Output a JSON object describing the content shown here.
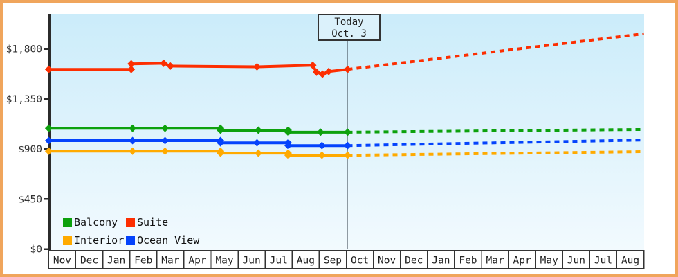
{
  "frame": {
    "border_color": "#f0a55c"
  },
  "today_box": {
    "line1": "Today",
    "line2": "Oct. 3"
  },
  "legend": {
    "items": [
      {
        "label": "Balcony",
        "color": "#0da10d"
      },
      {
        "label": "Suite",
        "color": "#fd2e01"
      },
      {
        "label": "Interior",
        "color": "#ffaa00"
      },
      {
        "label": "Ocean View",
        "color": "#0443fc"
      }
    ]
  },
  "chart_data": {
    "type": "line",
    "title": "",
    "x_axis": {
      "unit": "month",
      "tick_labels": [
        "Nov",
        "Dec",
        "Jan",
        "Feb",
        "Mar",
        "Apr",
        "May",
        "Jun",
        "Jul",
        "Aug",
        "Sep",
        "Oct",
        "Nov",
        "Dec",
        "Jan",
        "Feb",
        "Mar",
        "Apr",
        "May",
        "Jun",
        "Jul",
        "Aug"
      ]
    },
    "y_axis": {
      "tick_labels": [
        "$0",
        "$450",
        "$900",
        "$1,350",
        "$1,800"
      ],
      "tick_values": [
        0,
        450,
        900,
        1350,
        1800
      ],
      "range": [
        0,
        2110
      ]
    },
    "today": {
      "label": "Today",
      "date": "Oct. 3",
      "x_months_from_start": 11.05
    },
    "legend_position": "bottom-left-inside",
    "grid": false,
    "series": [
      {
        "name": "Interior",
        "color": "#ffaa00",
        "style": "solid-then-dashed-forecast",
        "actual": [
          [
            0,
            880
          ],
          [
            3.1,
            880
          ],
          [
            4.3,
            880
          ],
          [
            6.35,
            880
          ],
          [
            6.35,
            862
          ],
          [
            7.75,
            862
          ],
          [
            8.85,
            862
          ],
          [
            8.85,
            843
          ],
          [
            10.1,
            843
          ],
          [
            11.05,
            843
          ]
        ],
        "forecast": [
          [
            11.05,
            843
          ],
          [
            22,
            875
          ]
        ]
      },
      {
        "name": "Ocean View",
        "color": "#0443fc",
        "style": "solid-then-dashed-forecast",
        "actual": [
          [
            0,
            975
          ],
          [
            3.1,
            975
          ],
          [
            4.3,
            975
          ],
          [
            6.35,
            975
          ],
          [
            6.35,
            955
          ],
          [
            7.7,
            955
          ],
          [
            8.85,
            955
          ],
          [
            8.85,
            930
          ],
          [
            10.1,
            930
          ],
          [
            11.05,
            930
          ]
        ],
        "forecast": [
          [
            11.05,
            930
          ],
          [
            22,
            980
          ]
        ]
      },
      {
        "name": "Balcony",
        "color": "#0da10d",
        "style": "solid-then-dashed-forecast",
        "actual": [
          [
            0,
            1085
          ],
          [
            3.1,
            1085
          ],
          [
            4.3,
            1085
          ],
          [
            6.35,
            1085
          ],
          [
            6.35,
            1068
          ],
          [
            7.75,
            1068
          ],
          [
            8.85,
            1068
          ],
          [
            8.85,
            1050
          ],
          [
            10.05,
            1050
          ],
          [
            11.05,
            1050
          ]
        ],
        "forecast": [
          [
            11.05,
            1050
          ],
          [
            22,
            1075
          ]
        ]
      },
      {
        "name": "Suite",
        "color": "#fd2e01",
        "style": "solid-then-dashed-forecast",
        "actual": [
          [
            0,
            1615
          ],
          [
            3.05,
            1615
          ],
          [
            3.05,
            1665
          ],
          [
            4.25,
            1670
          ],
          [
            4.5,
            1645
          ],
          [
            7.7,
            1638
          ],
          [
            9.76,
            1652
          ],
          [
            9.9,
            1590
          ],
          [
            10.12,
            1572
          ],
          [
            10.35,
            1596
          ],
          [
            11.05,
            1615
          ]
        ],
        "forecast": [
          [
            11.05,
            1615
          ],
          [
            22,
            1935
          ]
        ]
      }
    ]
  }
}
